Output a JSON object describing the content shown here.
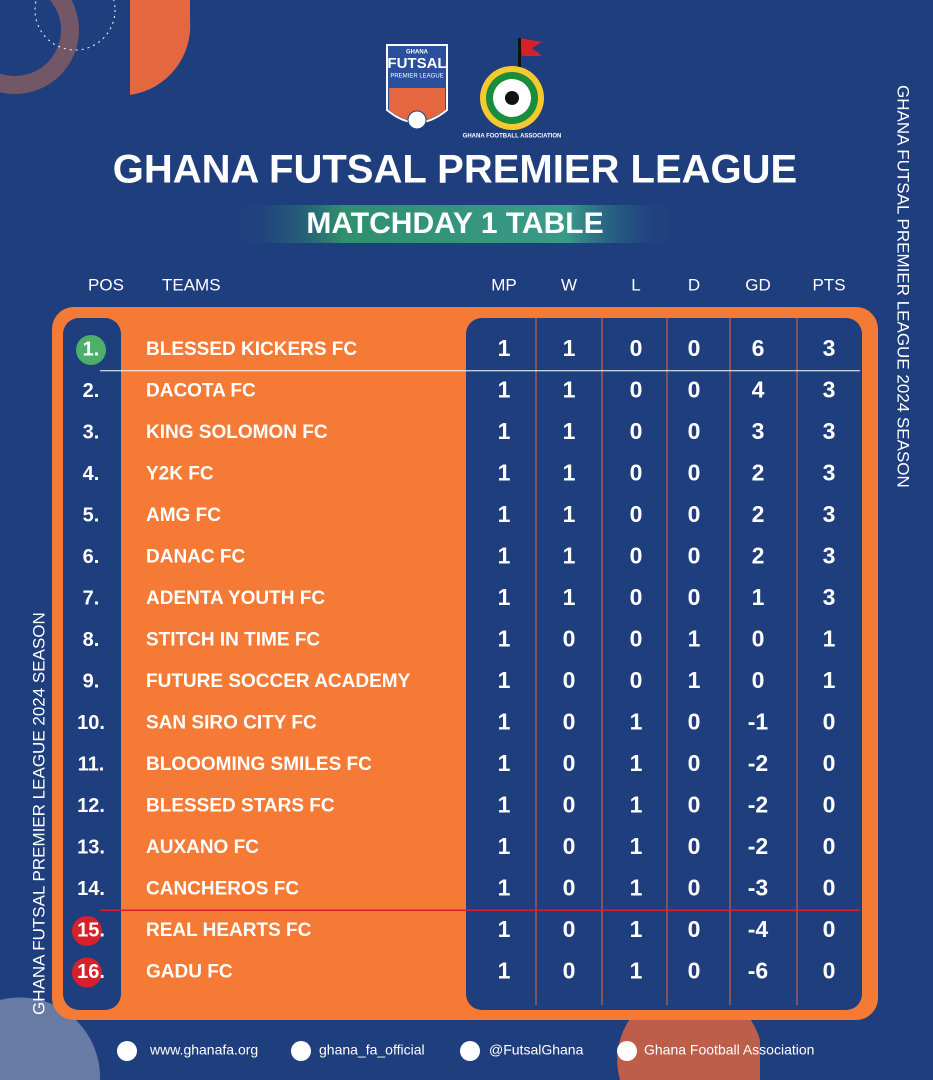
{
  "header": {
    "futsal_logo": {
      "top": "GHANA",
      "main": "FUTSAL",
      "sub": "PREMIER LEAGUE"
    },
    "gfa_logo": "GHANA FOOTBALL ASSOCIATION",
    "title": "GHANA FUTSAL PREMIER LEAGUE",
    "subtitle": "MATCHDAY 1 TABLE"
  },
  "side_text": "GHANA FUTSAL PREMIER LEAGUE 2024 SEASON",
  "table": {
    "columns": [
      "POS",
      "TEAMS",
      "MP",
      "W",
      "L",
      "D",
      "GD",
      "PTS"
    ],
    "rows": [
      [
        "1.",
        "BLESSED KICKERS FC",
        1,
        1,
        0,
        0,
        6,
        3
      ],
      [
        "2.",
        "DACOTA FC",
        1,
        1,
        0,
        0,
        4,
        3
      ],
      [
        "3.",
        "KING SOLOMON FC",
        1,
        1,
        0,
        0,
        3,
        3
      ],
      [
        "4.",
        "Y2K FC",
        1,
        1,
        0,
        0,
        2,
        3
      ],
      [
        "5.",
        "AMG FC",
        1,
        1,
        0,
        0,
        2,
        3
      ],
      [
        "6.",
        "DANAC FC",
        1,
        1,
        0,
        0,
        2,
        3
      ],
      [
        "7.",
        "ADENTA YOUTH FC",
        1,
        1,
        0,
        0,
        1,
        3
      ],
      [
        "8.",
        "STITCH IN TIME FC",
        1,
        0,
        0,
        1,
        0,
        1
      ],
      [
        "9.",
        "FUTURE SOCCER ACADEMY",
        1,
        0,
        0,
        1,
        0,
        1
      ],
      [
        "10.",
        "SAN SIRO CITY FC",
        1,
        0,
        1,
        0,
        -1,
        0
      ],
      [
        "11.",
        "BLOOOMING SMILES FC",
        1,
        0,
        1,
        0,
        -2,
        0
      ],
      [
        "12.",
        "BLESSED STARS FC",
        1,
        0,
        1,
        0,
        -2,
        0
      ],
      [
        "13.",
        "AUXANO FC",
        1,
        0,
        1,
        0,
        -2,
        0
      ],
      [
        "14.",
        "CANCHEROS FC",
        1,
        0,
        1,
        0,
        -3,
        0
      ],
      [
        "15.",
        "REAL HEARTS FC",
        1,
        0,
        1,
        0,
        -4,
        0
      ],
      [
        "16.",
        "GADU FC",
        1,
        0,
        1,
        0,
        -6,
        0
      ]
    ]
  },
  "footer": [
    "www.ghanafa.org",
    "ghana_fa_official",
    "@FutsalGhana",
    "Ghana Football Association"
  ]
}
